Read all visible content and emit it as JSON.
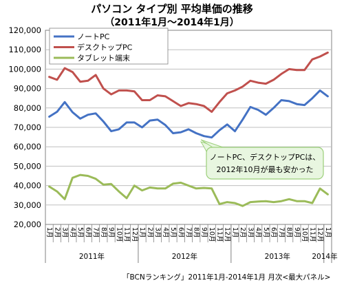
{
  "chart_data": {
    "type": "line",
    "title": "パソコン タイプ別 平均単価の推移",
    "subtitle": "（2011年1月～2014年1月）",
    "source_note": "「BCNランキング」2011年1月-2014年1月 月次<最大パネル>",
    "ylim": [
      20000,
      120000
    ],
    "y_ticks": [
      "20,000",
      "30,000",
      "40,000",
      "50,000",
      "60,000",
      "70,000",
      "80,000",
      "90,000",
      "100,000",
      "110,000",
      "120,000"
    ],
    "grid": true,
    "legend_position": "top-left",
    "x": [
      "1月",
      "2月",
      "3月",
      "4月",
      "5月",
      "6月",
      "7月",
      "8月",
      "9月",
      "10月",
      "11月",
      "12月",
      "1月",
      "2月",
      "3月",
      "4月",
      "5月",
      "6月",
      "7月",
      "8月",
      "9月",
      "10月",
      "11月",
      "12月",
      "1月",
      "2月",
      "3月",
      "4月",
      "5月",
      "6月",
      "7月",
      "8月",
      "9月",
      "10月",
      "11月",
      "12月",
      "1月"
    ],
    "year_labels": [
      "2011年",
      "2012年",
      "2013年",
      "2014年"
    ],
    "series": [
      {
        "name": "ノートPC",
        "color": "#4472C4",
        "values": [
          75500,
          78000,
          83000,
          77800,
          74500,
          76500,
          77200,
          73000,
          68000,
          69000,
          72500,
          72500,
          70000,
          73500,
          74000,
          71200,
          67000,
          67500,
          69000,
          67000,
          65500,
          64800,
          68500,
          71500,
          68000,
          74000,
          80500,
          79000,
          76500,
          80000,
          84000,
          83500,
          82000,
          81500,
          85000,
          89000,
          86000
        ]
      },
      {
        "name": "デスクトップPC",
        "color": "#C0504D",
        "values": [
          96000,
          94500,
          100500,
          98500,
          93500,
          94000,
          97000,
          90000,
          87000,
          89000,
          89000,
          88500,
          84000,
          84000,
          86500,
          86000,
          83500,
          81000,
          82500,
          82000,
          81000,
          78000,
          83000,
          87500,
          89000,
          91000,
          94000,
          93000,
          92500,
          94500,
          97500,
          100000,
          99500,
          99500,
          105000,
          106500,
          108500
        ]
      },
      {
        "name": "タブレット端末",
        "color": "#9BBB59",
        "values": [
          39500,
          37000,
          33000,
          44000,
          45500,
          45000,
          43500,
          40500,
          40800,
          37000,
          33500,
          40000,
          37500,
          39000,
          38500,
          38500,
          41000,
          41500,
          40000,
          38500,
          38800,
          38500,
          30500,
          31500,
          31000,
          29500,
          31500,
          31800,
          32000,
          31500,
          32000,
          33000,
          32000,
          32000,
          31000,
          38500,
          35500
        ]
      }
    ],
    "annotation": {
      "line1": "ノートPC、デスクトップPCは、",
      "line2": "2012年10月が最も安かった"
    }
  }
}
